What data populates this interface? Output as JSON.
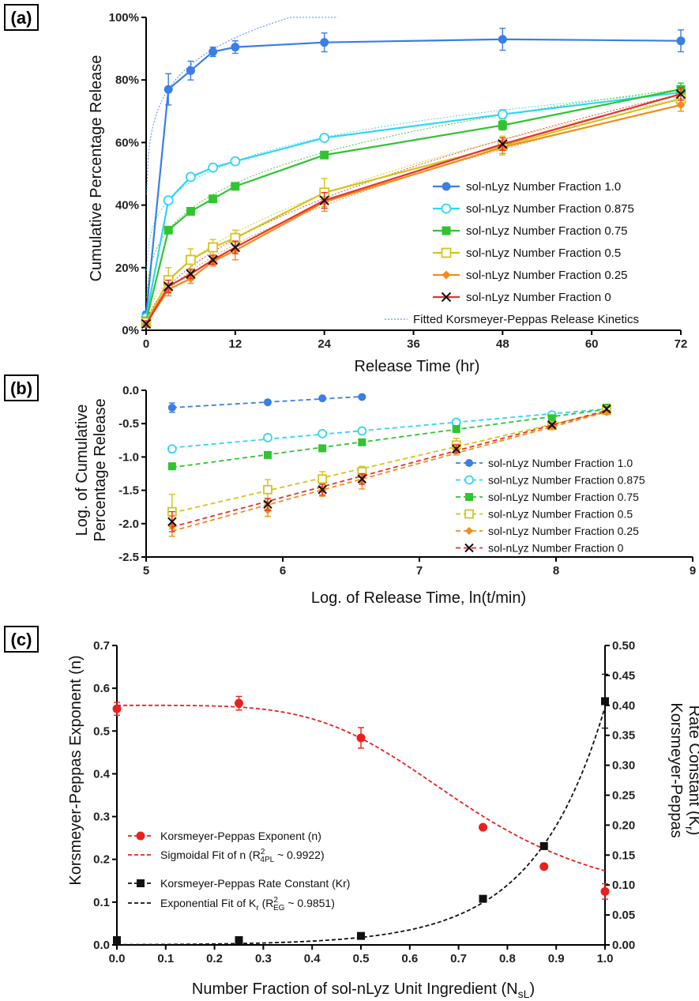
{
  "chart_data": [
    {
      "panel": "(a)",
      "type": "line",
      "xlabel": "Release Time (hr)",
      "ylabel": "Cumulative Percentage Release",
      "xlim": [
        0,
        72
      ],
      "ylim": [
        0,
        100
      ],
      "xticks": [
        "0",
        "12",
        "24",
        "36",
        "48",
        "60",
        "72"
      ],
      "yticks": [
        "0%",
        "20%",
        "40%",
        "60%",
        "80%",
        "100%"
      ],
      "legend_position": "bottom-right",
      "fit_label": "Fitted Korsmeyer-Peppas Release Kinetics",
      "x": [
        0,
        3,
        6,
        9,
        12,
        24,
        48,
        72
      ],
      "series": [
        {
          "name": "sol-nLyz Number Fraction 1.0",
          "color": "#3a7ee6",
          "marker": "circle-filled",
          "values": [
            5,
            77,
            83,
            89,
            90.5,
            92,
            93,
            92.5
          ],
          "err": [
            1,
            5,
            3,
            1.5,
            2,
            3,
            3.5,
            3.5
          ]
        },
        {
          "name": "sol-nLyz Number Fraction 0.875",
          "color": "#2fd6f0",
          "marker": "circle-open",
          "values": [
            4,
            41.5,
            49,
            52,
            54,
            61.5,
            69,
            76
          ],
          "err": [
            1,
            1,
            1,
            1,
            1,
            1,
            1.5,
            2
          ]
        },
        {
          "name": "sol-nLyz Number Fraction 0.75",
          "color": "#31c431",
          "marker": "square-filled",
          "values": [
            3,
            32,
            38,
            42,
            46,
            56,
            65.5,
            77
          ],
          "err": [
            1,
            1,
            1,
            1,
            1,
            1,
            1.5,
            2
          ]
        },
        {
          "name": "sol-nLyz Number Fraction 0.5",
          "color": "#d4c41c",
          "marker": "square-open",
          "values": [
            2.5,
            16,
            22.5,
            26.5,
            29.5,
            44,
            59,
            74
          ],
          "err": [
            1,
            4,
            3.5,
            2.5,
            2.5,
            4.5,
            3,
            2.5
          ]
        },
        {
          "name": "sol-nLyz Number Fraction 0.25",
          "color": "#f28c1c",
          "marker": "diamond",
          "values": [
            2,
            13,
            16.5,
            22,
            25.5,
            41,
            58.5,
            72
          ],
          "err": [
            1,
            2,
            1.5,
            1.5,
            3,
            3,
            2,
            2
          ]
        },
        {
          "name": "sol-nLyz Number Fraction 0",
          "color": "#e8312c",
          "marker": "cross",
          "values": [
            2,
            14,
            18,
            22.5,
            26.5,
            41.5,
            59.5,
            75.5
          ],
          "err": [
            1,
            2,
            1.5,
            1.5,
            2,
            2.5,
            2,
            2
          ]
        }
      ]
    },
    {
      "panel": "(b)",
      "type": "scatter",
      "xlabel": "Log. of Release Time, ln(t/min)",
      "ylabel": "Log. of Cumulative Percentage Release",
      "xlim": [
        5,
        9
      ],
      "ylim": [
        -2.5,
        0
      ],
      "xticks": [
        "5",
        "6",
        "7",
        "8",
        "9"
      ],
      "yticks": [
        "-2.5",
        "-2.0",
        "-1.5",
        "-1.0",
        "-0.5",
        "0.0"
      ],
      "legend_position": "bottom-right",
      "x": [
        5.19,
        5.89,
        6.29,
        6.58,
        7.27,
        7.97,
        8.37
      ],
      "series": [
        {
          "name": "sol-nLyz Number Fraction 1.0",
          "color": "#3a7ee6",
          "marker": "circle-filled",
          "values": [
            -0.26,
            -0.18,
            -0.12,
            -0.1
          ],
          "err": [
            0.07,
            0.03,
            0.02,
            0.02
          ]
        },
        {
          "name": "sol-nLyz Number Fraction 0.875",
          "color": "#2fd6f0",
          "marker": "circle-open",
          "values": [
            -0.88,
            -0.71,
            -0.65,
            -0.61,
            -0.48,
            -0.37,
            -0.27
          ],
          "err": [
            0.02,
            0.02,
            0.02,
            0.02,
            0.02,
            0.02,
            0.02
          ]
        },
        {
          "name": "sol-nLyz Number Fraction 0.75",
          "color": "#31c431",
          "marker": "square-filled",
          "values": [
            -1.14,
            -0.97,
            -0.87,
            -0.78,
            -0.58,
            -0.42,
            -0.26
          ],
          "err": [
            0.03,
            0.03,
            0.02,
            0.02,
            0.02,
            0.02,
            0.02
          ]
        },
        {
          "name": "sol-nLyz Number Fraction 0.5",
          "color": "#d4c41c",
          "marker": "square-open",
          "values": [
            -1.82,
            -1.49,
            -1.33,
            -1.22,
            -0.82,
            -0.53,
            -0.3
          ],
          "err": [
            0.26,
            0.15,
            0.11,
            0.08,
            0.1,
            0.05,
            0.03
          ]
        },
        {
          "name": "sol-nLyz Number Fraction 0.25",
          "color": "#f28c1c",
          "marker": "diamond",
          "values": [
            -2.04,
            -1.8,
            -1.5,
            -1.37,
            -0.89,
            -0.54,
            -0.33
          ],
          "err": [
            0.15,
            0.09,
            0.09,
            0.11,
            0.08,
            0.04,
            0.03
          ]
        },
        {
          "name": "sol-nLyz Number Fraction 0",
          "color": "#e8312c",
          "marker": "cross",
          "values": [
            -1.97,
            -1.71,
            -1.49,
            -1.33,
            -0.88,
            -0.52,
            -0.28
          ],
          "err": [
            0.15,
            0.09,
            0.08,
            0.08,
            0.06,
            0.03,
            0.03
          ]
        }
      ]
    },
    {
      "panel": "(c)",
      "type": "scatter",
      "xlabel_main": "Number Fraction of sol-nLyz Unit Ingredient (N",
      "xlabel_sub": "sL",
      "xlabel_end": ")",
      "ylabel_left": "Korsmeyer-Peppas Exponent (n)",
      "ylabel_right_line1": "Korsmeyer-Peppas",
      "ylabel_right_line2": "Rate Constant (K",
      "ylabel_right_sub": "r",
      "ylabel_right_end": ")",
      "xlim": [
        0,
        1
      ],
      "ylim_left": [
        0,
        0.7
      ],
      "ylim_right": [
        0,
        0.5
      ],
      "xticks": [
        "0.0",
        "0.1",
        "0.2",
        "0.3",
        "0.4",
        "0.5",
        "0.6",
        "0.7",
        "0.8",
        "0.9",
        "1.0"
      ],
      "yticks_left": [
        "0.0",
        "0.1",
        "0.2",
        "0.3",
        "0.4",
        "0.5",
        "0.6",
        "0.7"
      ],
      "yticks_right": [
        "0.00",
        "0.05",
        "0.10",
        "0.15",
        "0.20",
        "0.25",
        "0.30",
        "0.35",
        "0.40",
        "0.45",
        "0.50"
      ],
      "legend_position": "middle-left",
      "x": [
        0,
        0.25,
        0.5,
        0.75,
        0.875,
        1.0
      ],
      "n_series": {
        "name": "Korsmeyer-Peppas Exponent (n)",
        "color": "#e8211c",
        "values": [
          0.552,
          0.565,
          0.484,
          0.275,
          0.183,
          0.125
        ],
        "err": [
          0.015,
          0.016,
          0.024,
          0.005,
          0.005,
          0.018
        ]
      },
      "n_fit": {
        "name_main": "Sigmoidal Fit of n (R",
        "name_sup": "2",
        "name_sub": "4PL",
        "name_end": " ~ 0.9922)",
        "color": "#e8211c"
      },
      "k_series": {
        "name": "Korsmeyer-Peppas Rate Constant (Kr)",
        "color": "#111111",
        "values": [
          0.008,
          0.008,
          0.015,
          0.077,
          0.165,
          0.407
        ],
        "err": [
          0.0,
          0.0,
          0.0,
          0.0,
          0.0,
          0.045
        ]
      },
      "k_fit": {
        "name_main": "Exponential Fit of K",
        "name_sub1": "r",
        "name_mid": " (R",
        "name_sup": "2",
        "name_sub2": "EG",
        "name_end": " ~ 0.9851)",
        "color": "#111111"
      }
    }
  ]
}
